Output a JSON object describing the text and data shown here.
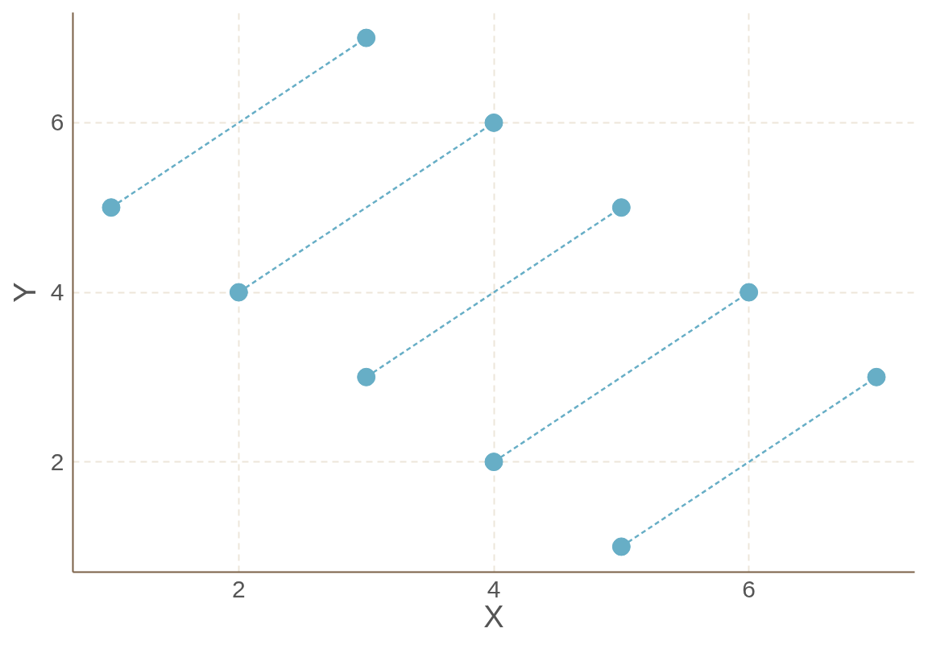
{
  "chart_data": {
    "type": "line",
    "xlabel": "X",
    "ylabel": "Y",
    "xlim": [
      0.7,
      7.3
    ],
    "ylim": [
      0.7,
      7.3
    ],
    "xticks": [
      2,
      4,
      6
    ],
    "yticks": [
      2,
      4,
      6
    ],
    "grid": true,
    "marker": "circle",
    "line_style": "dashed",
    "series": [
      {
        "color": "#67aec6",
        "x": [
          1,
          3
        ],
        "values": [
          5,
          7
        ]
      },
      {
        "color": "#67aec6",
        "x": [
          2,
          4
        ],
        "values": [
          4,
          6
        ]
      },
      {
        "color": "#67aec6",
        "x": [
          3,
          5
        ],
        "values": [
          3,
          5
        ]
      },
      {
        "color": "#67aec6",
        "x": [
          4,
          6
        ],
        "values": [
          2,
          4
        ]
      },
      {
        "color": "#67aec6",
        "x": [
          5,
          7
        ],
        "values": [
          1,
          3
        ]
      }
    ]
  }
}
